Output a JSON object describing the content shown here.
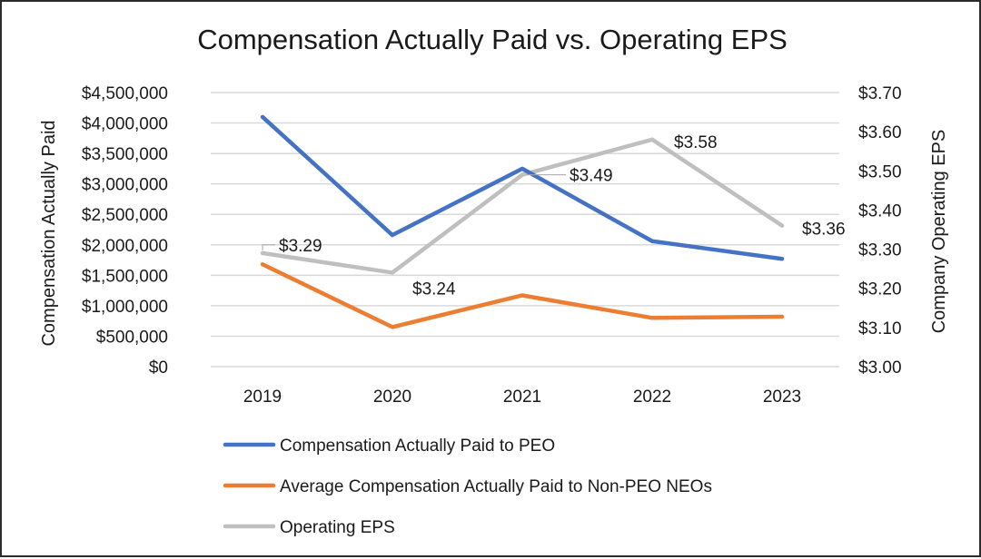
{
  "chart_data": {
    "type": "line",
    "title": "Compensation Actually Paid vs. Operating EPS",
    "categories": [
      "2019",
      "2020",
      "2021",
      "2022",
      "2023"
    ],
    "y_left": {
      "label": "Compensation Actually Paid",
      "range": [
        0,
        4500000
      ],
      "ticks": [
        0,
        500000,
        1000000,
        1500000,
        2000000,
        2500000,
        3000000,
        3500000,
        4000000,
        4500000
      ],
      "tick_labels": [
        "$0",
        "$500,000",
        "$1,000,000",
        "$1,500,000",
        "$2,000,000",
        "$2,500,000",
        "$3,000,000",
        "$3,500,000",
        "$4,000,000",
        "$4,500,000"
      ]
    },
    "y_right": {
      "label": "Company Operating EPS",
      "range": [
        3.0,
        3.7
      ],
      "ticks": [
        3.0,
        3.1,
        3.2,
        3.3,
        3.4,
        3.5,
        3.6,
        3.7
      ],
      "tick_labels": [
        "$3.00",
        "$3.10",
        "$3.20",
        "$3.30",
        "$3.40",
        "$3.50",
        "$3.60",
        "$3.70"
      ]
    },
    "grid": true,
    "legend_position": "bottom",
    "series": [
      {
        "name": "Compensation Actually Paid to PEO",
        "axis": "left",
        "color": "#4472C4",
        "values": [
          4100000,
          2160000,
          3250000,
          2060000,
          1770000
        ]
      },
      {
        "name": "Average Compensation Actually Paid to Non-PEO NEOs",
        "axis": "left",
        "color": "#ED7D31",
        "values": [
          1680000,
          650000,
          1170000,
          800000,
          820000
        ]
      },
      {
        "name": "Operating EPS",
        "axis": "right",
        "color": "#BFBFBF",
        "values": [
          3.29,
          3.24,
          3.49,
          3.58,
          3.36
        ],
        "data_labels": [
          "$3.29",
          "$3.24",
          "$3.49",
          "$3.58",
          "$3.36"
        ]
      }
    ]
  }
}
